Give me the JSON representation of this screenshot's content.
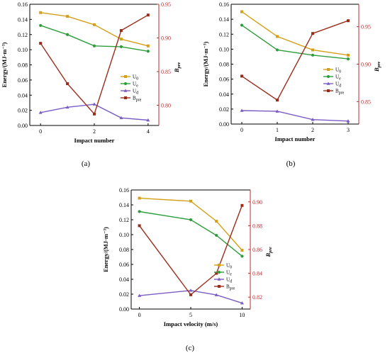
{
  "figure": {
    "panel_labels": [
      "(a)",
      "(b)",
      "(c)"
    ]
  },
  "chart_data": [
    {
      "type": "line",
      "panel": "(a)",
      "xlabel": "Impact number",
      "ylabel": "Energy/(MJ·m⁻³)",
      "y2label": "Bpre",
      "x": [
        0,
        1,
        2,
        3,
        4
      ],
      "xticks": [
        "0",
        "2",
        "4"
      ],
      "ylim": [
        0,
        0.16
      ],
      "yticks": [
        "0.00",
        "0.02",
        "0.04",
        "0.06",
        "0.08",
        "0.10",
        "0.12",
        "0.14",
        "0.16"
      ],
      "y2lim": [
        0.77,
        0.95
      ],
      "y2ticks": [
        "0.80",
        "0.85",
        "0.90",
        "0.95"
      ],
      "grid": false,
      "legend": "right",
      "series": [
        {
          "name": "U0",
          "axis": "left",
          "color": "#d4a017",
          "marker": "square",
          "values": [
            0.149,
            0.144,
            0.133,
            0.114,
            0.105
          ]
        },
        {
          "name": "Ue",
          "axis": "left",
          "color": "#2e9e3c",
          "marker": "circle",
          "values": [
            0.132,
            0.12,
            0.105,
            0.104,
            0.098
          ]
        },
        {
          "name": "Ud",
          "axis": "left",
          "color": "#7b5cc4",
          "marker": "triangle",
          "values": [
            0.017,
            0.024,
            0.028,
            0.01,
            0.007
          ]
        },
        {
          "name": "Bpre",
          "axis": "right",
          "color": "#9b2c1c",
          "marker": "square",
          "values": [
            0.892,
            0.832,
            0.787,
            0.911,
            0.934
          ]
        }
      ]
    },
    {
      "type": "line",
      "panel": "(b)",
      "xlabel": "Impact number",
      "ylabel": "Energy/(MJ·m⁻³)",
      "y2label": "Bpre",
      "x": [
        0,
        1,
        2,
        3
      ],
      "xticks": [
        "0",
        "1",
        "2",
        "3"
      ],
      "ylim": [
        0,
        0.16
      ],
      "yticks": [
        "0.00",
        "0.02",
        "0.04",
        "0.06",
        "0.08",
        "0.10",
        "0.12",
        "0.14",
        "0.16"
      ],
      "y2lim": [
        0.82,
        0.98
      ],
      "y2ticks": [
        "0.85",
        "0.90",
        "0.95"
      ],
      "grid": false,
      "legend": "right",
      "series": [
        {
          "name": "U0",
          "axis": "left",
          "color": "#d4a017",
          "marker": "square",
          "values": [
            0.15,
            0.117,
            0.099,
            0.092
          ]
        },
        {
          "name": "Ue",
          "axis": "left",
          "color": "#2e9e3c",
          "marker": "circle",
          "values": [
            0.132,
            0.099,
            0.092,
            0.087
          ]
        },
        {
          "name": "Ud",
          "axis": "left",
          "color": "#7b5cc4",
          "marker": "triangle",
          "values": [
            0.018,
            0.017,
            0.006,
            0.004
          ]
        },
        {
          "name": "Bpre",
          "axis": "right",
          "color": "#9b2c1c",
          "marker": "square",
          "values": [
            0.884,
            0.852,
            0.941,
            0.958
          ]
        }
      ]
    },
    {
      "type": "line",
      "panel": "(c)",
      "xlabel": "Impact velocity (m/s)",
      "ylabel": "Energy/(MJ·m⁻³)",
      "y2label": "Bpre",
      "x": [
        0,
        5,
        7.5,
        10
      ],
      "xticks": [
        "0",
        "5",
        "10"
      ],
      "xlim": [
        -0.8,
        10.8
      ],
      "ylim": [
        0,
        0.16
      ],
      "yticks": [
        "0.00",
        "0.02",
        "0.04",
        "0.06",
        "0.08",
        "0.10",
        "0.12",
        "0.14",
        "0.16"
      ],
      "y2lim": [
        0.81,
        0.91
      ],
      "y2ticks": [
        "0.82",
        "0.84",
        "0.86",
        "0.88",
        "0.90"
      ],
      "grid": false,
      "legend": "right",
      "series": [
        {
          "name": "U0",
          "axis": "left",
          "color": "#d4a017",
          "marker": "square",
          "values": [
            0.149,
            0.145,
            0.118,
            0.079
          ]
        },
        {
          "name": "Ue",
          "axis": "left",
          "color": "#2e9e3c",
          "marker": "circle",
          "values": [
            0.131,
            0.12,
            0.099,
            0.071
          ]
        },
        {
          "name": "Ud",
          "axis": "left",
          "color": "#7b5cc4",
          "marker": "triangle",
          "values": [
            0.018,
            0.025,
            0.019,
            0.008
          ]
        },
        {
          "name": "Bpre",
          "axis": "right",
          "color": "#9b2c1c",
          "marker": "square",
          "values": [
            0.88,
            0.822,
            0.84,
            0.897
          ]
        }
      ]
    }
  ]
}
